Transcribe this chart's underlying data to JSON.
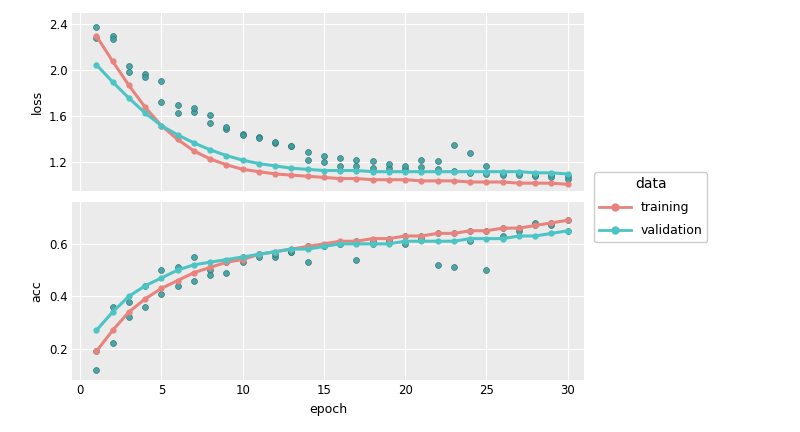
{
  "epochs": [
    1,
    2,
    3,
    4,
    5,
    6,
    7,
    8,
    9,
    10,
    11,
    12,
    13,
    14,
    15,
    16,
    17,
    18,
    19,
    20,
    21,
    22,
    23,
    24,
    25,
    26,
    27,
    28,
    29,
    30
  ],
  "train_loss_smooth": [
    2.3,
    2.08,
    1.87,
    1.68,
    1.52,
    1.4,
    1.3,
    1.23,
    1.18,
    1.14,
    1.12,
    1.1,
    1.09,
    1.08,
    1.07,
    1.06,
    1.06,
    1.05,
    1.05,
    1.05,
    1.04,
    1.04,
    1.04,
    1.03,
    1.03,
    1.03,
    1.02,
    1.02,
    1.02,
    1.01
  ],
  "val_loss_smooth": [
    2.05,
    1.9,
    1.76,
    1.63,
    1.52,
    1.44,
    1.37,
    1.31,
    1.26,
    1.22,
    1.19,
    1.17,
    1.15,
    1.14,
    1.13,
    1.13,
    1.13,
    1.12,
    1.12,
    1.12,
    1.12,
    1.12,
    1.12,
    1.12,
    1.12,
    1.12,
    1.12,
    1.11,
    1.11,
    1.1
  ],
  "val_loss_scatter": [
    2.38,
    2.3,
    1.99,
    1.97,
    1.73,
    1.63,
    1.64,
    1.54,
    1.49,
    1.45,
    1.42,
    1.37,
    1.34,
    1.22,
    1.2,
    1.17,
    1.17,
    1.15,
    1.15,
    1.14,
    1.22,
    1.21,
    1.35,
    1.28,
    1.17,
    1.11,
    1.11,
    1.09,
    1.09,
    1.08
  ],
  "train_loss_scatter": [
    2.28,
    2.27,
    2.04,
    1.94,
    1.91,
    1.7,
    1.67,
    1.61,
    1.51,
    1.44,
    1.41,
    1.38,
    1.34,
    1.29,
    1.26,
    1.24,
    1.22,
    1.21,
    1.19,
    1.17,
    1.16,
    1.14,
    1.13,
    1.11,
    1.1,
    1.09,
    1.09,
    1.08,
    1.07,
    1.06
  ],
  "train_acc_smooth": [
    0.19,
    0.27,
    0.34,
    0.39,
    0.43,
    0.46,
    0.49,
    0.51,
    0.53,
    0.54,
    0.56,
    0.57,
    0.58,
    0.59,
    0.6,
    0.61,
    0.61,
    0.62,
    0.62,
    0.63,
    0.63,
    0.64,
    0.64,
    0.65,
    0.65,
    0.66,
    0.66,
    0.67,
    0.68,
    0.69
  ],
  "val_acc_smooth": [
    0.27,
    0.34,
    0.4,
    0.44,
    0.47,
    0.5,
    0.52,
    0.53,
    0.54,
    0.55,
    0.56,
    0.57,
    0.58,
    0.58,
    0.59,
    0.6,
    0.6,
    0.6,
    0.6,
    0.61,
    0.61,
    0.61,
    0.61,
    0.62,
    0.62,
    0.62,
    0.63,
    0.63,
    0.64,
    0.65
  ],
  "val_acc_scatter": [
    0.12,
    0.36,
    0.38,
    0.44,
    0.5,
    0.51,
    0.55,
    0.5,
    0.49,
    0.55,
    0.56,
    0.55,
    0.57,
    0.53,
    0.59,
    0.6,
    0.54,
    0.6,
    0.61,
    0.6,
    0.62,
    0.52,
    0.51,
    0.61,
    0.5,
    0.63,
    0.65,
    0.68,
    0.67,
    0.65
  ],
  "train_acc_scatter": [
    0.19,
    0.22,
    0.32,
    0.36,
    0.41,
    0.44,
    0.46,
    0.48,
    0.53,
    0.53,
    0.55,
    0.56,
    0.57,
    0.59,
    0.59,
    0.6,
    0.61,
    0.61,
    0.62,
    0.63,
    0.63,
    0.64,
    0.64,
    0.65,
    0.65,
    0.66,
    0.66,
    0.67,
    0.68,
    0.69
  ],
  "train_color": "#E8837E",
  "val_color": "#4DC4C4",
  "scatter_fill": "#3A9E9E",
  "scatter_edge": "#2A7070",
  "bg_color": "#EBEBEB",
  "grid_color": "#FFFFFF",
  "xlim": [
    -0.5,
    31
  ],
  "loss_ylim": [
    0.95,
    2.5
  ],
  "acc_ylim": [
    0.08,
    0.76
  ],
  "loss_yticks": [
    1.2,
    1.6,
    2.0,
    2.4
  ],
  "acc_yticks": [
    0.2,
    0.4,
    0.6
  ],
  "xticks": [
    0,
    5,
    10,
    15,
    20,
    25,
    30
  ],
  "xlabel": "epoch",
  "loss_ylabel": "loss",
  "acc_ylabel": "acc",
  "legend_title": "data",
  "legend_training": "training",
  "legend_validation": "validation"
}
